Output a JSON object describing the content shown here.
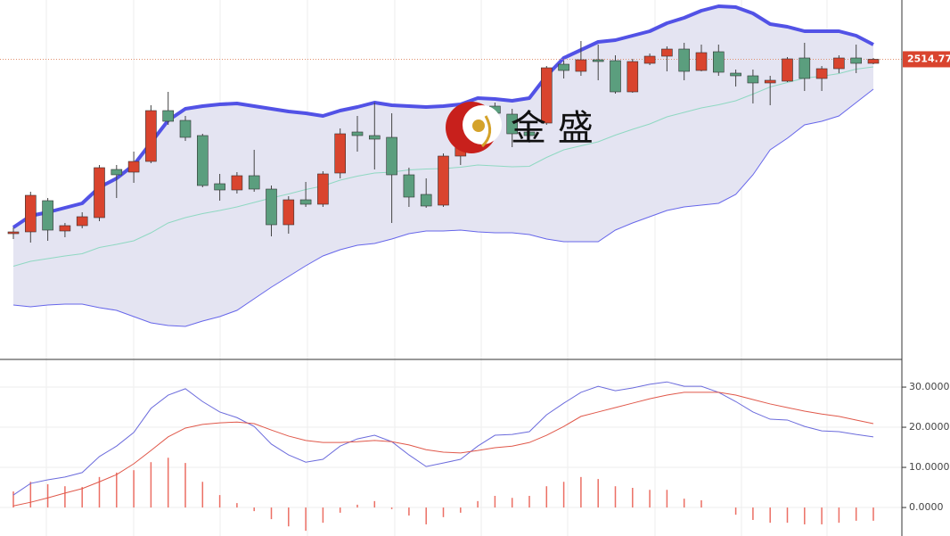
{
  "watermark": "金 盛",
  "chart_data": [
    {
      "type": "candlestick",
      "up_color": "#d9442e",
      "down_color": "#5b9e7e",
      "band_fill": "#e4e4f2",
      "upper_color": "#5252e6",
      "middle_color": "#8fd8c2",
      "lower_color": "#6666ea",
      "price_line_color": "#e0906e",
      "ylim": [
        2346.5,
        2548
      ],
      "open": [
        2417,
        2418,
        2435.5,
        2418.5,
        2421.5,
        2426,
        2453,
        2451.5,
        2457.5,
        2486,
        2480.5,
        2472,
        2445,
        2441.5,
        2449.5,
        2442,
        2422,
        2436,
        2433.5,
        2451,
        2474,
        2472,
        2471,
        2450,
        2439,
        2433,
        2460.5,
        2465.5,
        2488.5,
        2484,
        2474,
        2479,
        2512,
        2508,
        2514.5,
        2514,
        2496.5,
        2512.5,
        2516.5,
        2520.5,
        2508.5,
        2519,
        2507,
        2505.5,
        2501.5,
        2502.5,
        2515.5,
        2504,
        2509.5,
        2515.5,
        2512.5
      ],
      "high": [
        2420.5,
        2440.5,
        2437,
        2423,
        2429,
        2455.5,
        2455.5,
        2463,
        2489,
        2496.5,
        2483,
        2473,
        2450.5,
        2451.5,
        2464,
        2444,
        2438,
        2446,
        2452,
        2476,
        2483,
        2490.5,
        2484.5,
        2454,
        2448,
        2462,
        2468,
        2488,
        2490.5,
        2487,
        2478,
        2511,
        2514,
        2525,
        2523,
        2517,
        2515,
        2518,
        2522,
        2524,
        2523,
        2523,
        2509,
        2509,
        2505.5,
        2516,
        2524,
        2511,
        2517,
        2523,
        2515.5
      ],
      "low": [
        2414,
        2412,
        2413,
        2415,
        2420,
        2424,
        2437,
        2445.5,
        2456.5,
        2478,
        2469,
        2443,
        2435.5,
        2439.5,
        2440.5,
        2415.5,
        2417,
        2432,
        2432,
        2448,
        2463,
        2453,
        2423,
        2432,
        2431.5,
        2432,
        2455.5,
        2463,
        2480.5,
        2465.5,
        2468,
        2478,
        2504,
        2505.5,
        2503,
        2495.5,
        2496,
        2511.5,
        2508,
        2503,
        2508,
        2505.5,
        2499.5,
        2490,
        2489,
        2502,
        2497,
        2497,
        2507,
        2507,
        2512
      ],
      "close": [
        2418,
        2438.5,
        2419,
        2421.5,
        2426.5,
        2454,
        2450,
        2457.5,
        2486,
        2480,
        2471,
        2444,
        2441.5,
        2449.5,
        2442,
        2422,
        2436,
        2433.5,
        2450.5,
        2473,
        2472,
        2470,
        2450,
        2437.5,
        2432.5,
        2460.5,
        2465.5,
        2484.5,
        2484.5,
        2473,
        2472,
        2510,
        2508.5,
        2514.5,
        2513.5,
        2496.5,
        2513.5,
        2516.5,
        2520.5,
        2508,
        2518.5,
        2507.5,
        2505.5,
        2501.5,
        2503,
        2515,
        2504,
        2509.5,
        2515.5,
        2512.5,
        2514.77
      ],
      "upper": [
        2420.5,
        2427,
        2429,
        2431.5,
        2434,
        2443,
        2448,
        2455.5,
        2468,
        2480.5,
        2487,
        2488.5,
        2489.5,
        2490,
        2488.5,
        2487,
        2485.5,
        2484.5,
        2483,
        2486,
        2488,
        2490.5,
        2489,
        2488.5,
        2488,
        2488.5,
        2489.5,
        2493,
        2492.5,
        2491.5,
        2493,
        2505.5,
        2515.5,
        2520,
        2524.5,
        2525.5,
        2528,
        2530.5,
        2535,
        2538,
        2542,
        2544.5,
        2544,
        2540.5,
        2534.5,
        2533,
        2530.5,
        2530.5,
        2530.5,
        2528,
        2523
      ],
      "middle": [
        2398.75,
        2401.5,
        2403,
        2404.5,
        2405.75,
        2409.25,
        2411,
        2413,
        2417.5,
        2423,
        2426,
        2428.25,
        2430,
        2432,
        2434.5,
        2437,
        2439.25,
        2441.75,
        2443.75,
        2447,
        2449.25,
        2451,
        2451.5,
        2452.75,
        2453.25,
        2453.5,
        2454.25,
        2455.5,
        2455,
        2454.5,
        2454.75,
        2459.75,
        2464,
        2466.25,
        2468.5,
        2472.25,
        2475.5,
        2478.5,
        2482.5,
        2485,
        2487.5,
        2489.25,
        2491.5,
        2495.25,
        2499.25,
        2501.75,
        2504.25,
        2505.25,
        2506.75,
        2509.25,
        2510.5
      ],
      "lower": [
        2377,
        2376,
        2377,
        2377.5,
        2377.5,
        2375.5,
        2374,
        2370.5,
        2367,
        2365.5,
        2365,
        2368,
        2370.5,
        2374,
        2380.5,
        2387,
        2393,
        2399,
        2404.5,
        2408,
        2410.5,
        2411.5,
        2414,
        2417,
        2418.5,
        2418.5,
        2419,
        2418,
        2417.5,
        2417.5,
        2416.5,
        2414,
        2412.5,
        2412.5,
        2412.5,
        2419,
        2423,
        2426.5,
        2430,
        2432,
        2433,
        2434,
        2439,
        2450,
        2464,
        2470.5,
        2478,
        2480,
        2483,
        2490.5,
        2498
      ]
    },
    {
      "type": "macd",
      "ylim": [
        -7.1,
        36.9
      ],
      "yticks": [
        {
          "value": 30,
          "label": "30.0000"
        },
        {
          "value": 20,
          "label": "20.0000"
        },
        {
          "value": 10,
          "label": "10.0000"
        },
        {
          "value": 0,
          "label": "0.0000"
        }
      ],
      "grid": true,
      "lines": [
        {
          "color": "#6b6bdc",
          "values": [
            3.1,
            6.0,
            6.9,
            7.6,
            8.7,
            12.7,
            15.3,
            18.7,
            24.7,
            28.0,
            29.6,
            26.4,
            23.8,
            22.4,
            20.2,
            15.8,
            13.1,
            11.3,
            12.0,
            15.3,
            17.1,
            18.0,
            16.4,
            13.1,
            10.2,
            11.1,
            12.0,
            15.3,
            18.0,
            18.2,
            18.9,
            23.1,
            26.0,
            28.7,
            30.2,
            29.1,
            29.8,
            30.7,
            31.3,
            30.2,
            30.2,
            28.7,
            26.4,
            23.8,
            22.0,
            21.8,
            20.2,
            19.1,
            18.9,
            18.2,
            17.6
          ]
        },
        {
          "color": "#e0584a",
          "values": [
            0.4,
            1.3,
            2.4,
            3.6,
            4.7,
            6.4,
            8.2,
            10.9,
            14.2,
            17.6,
            19.8,
            20.7,
            21.1,
            21.3,
            20.9,
            19.3,
            17.8,
            16.7,
            16.2,
            16.2,
            16.4,
            16.7,
            16.4,
            15.6,
            14.4,
            13.8,
            13.6,
            14.2,
            14.9,
            15.3,
            16.2,
            18.0,
            20.2,
            22.7,
            23.8,
            24.9,
            26.0,
            27.1,
            28.0,
            28.7,
            28.7,
            28.7,
            28.0,
            26.9,
            25.8,
            24.9,
            24.0,
            23.3,
            22.7,
            21.8,
            20.9
          ]
        }
      ],
      "histogram": {
        "color": "#ec6f64",
        "values": [
          4.0,
          6.4,
          5.8,
          5.3,
          5.1,
          7.6,
          8.7,
          9.3,
          11.3,
          12.4,
          11.1,
          6.4,
          3.1,
          1.1,
          -0.9,
          -2.9,
          -4.7,
          -5.8,
          -3.8,
          -1.3,
          0.7,
          1.6,
          -0.4,
          -2.0,
          -4.2,
          -2.4,
          -1.3,
          1.6,
          2.9,
          2.4,
          2.9,
          5.3,
          6.4,
          7.6,
          7.1,
          5.3,
          4.9,
          4.4,
          4.4,
          2.2,
          1.8,
          0,
          -1.8,
          -3.1,
          -3.8,
          -3.8,
          -4.2,
          -4.2,
          -3.8,
          -3.3,
          -3.3
        ]
      }
    }
  ]
}
